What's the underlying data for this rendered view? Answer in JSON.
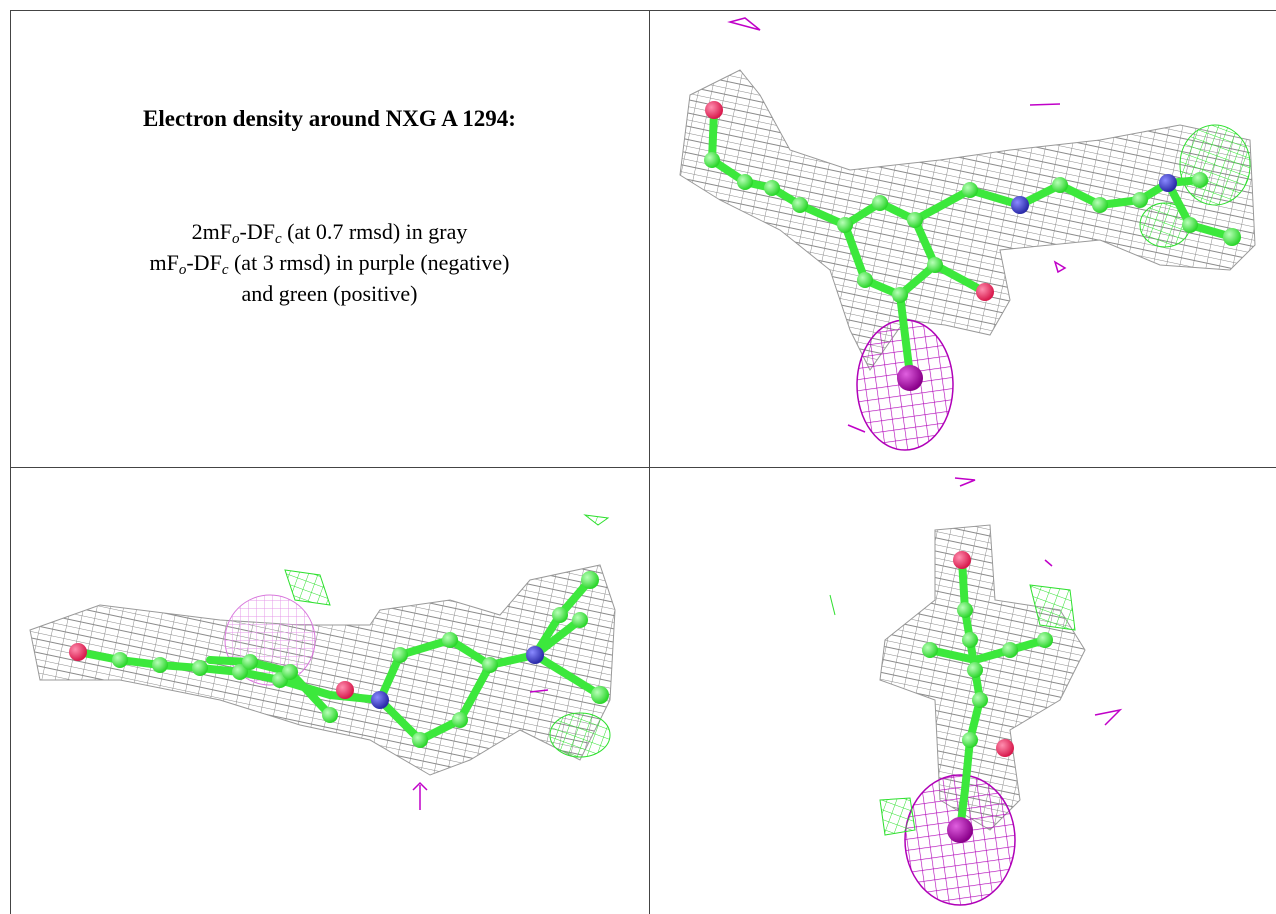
{
  "caption": {
    "title": "Electron density around NXG A 1294:",
    "lines": [
      [
        "2mF",
        "o",
        "-DF",
        "c",
        " (at 0.7 rmsd) in gray"
      ],
      [
        "mF",
        "o",
        "-DF",
        "c",
        " (at 3 rmsd) in purple (negative)"
      ],
      [
        "and green (positive)"
      ]
    ]
  }
}
